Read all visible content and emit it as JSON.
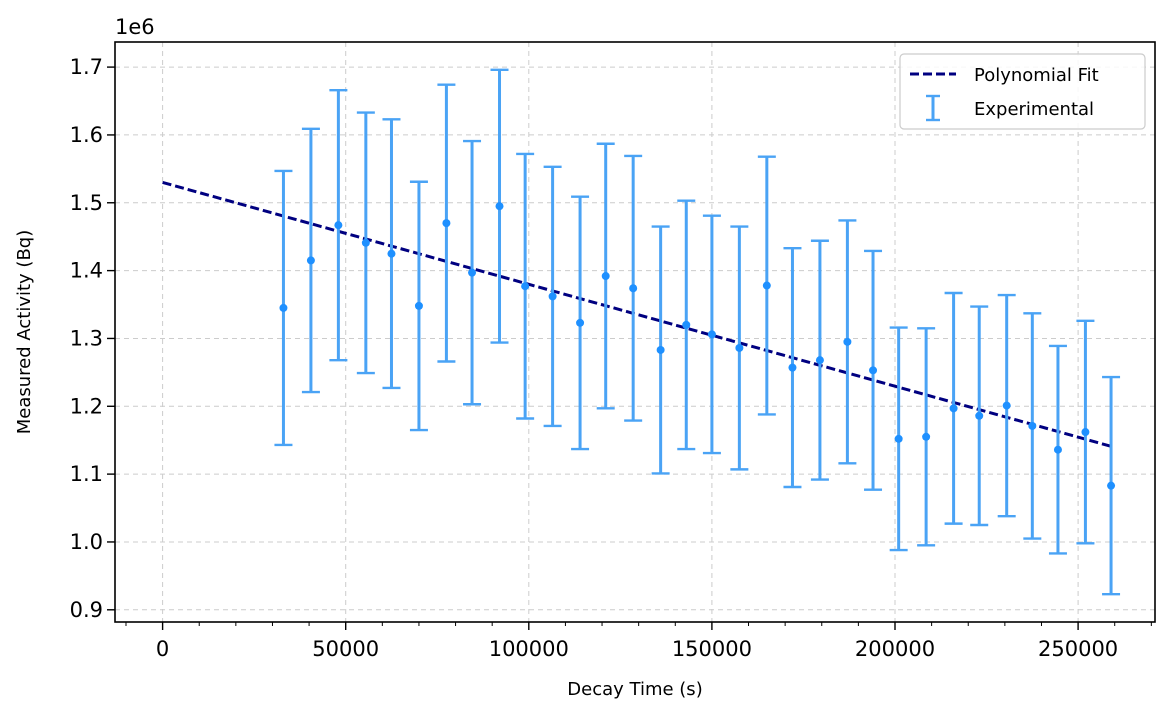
{
  "chart_data": {
    "type": "scatter",
    "title": "",
    "xlabel": "Decay Time (s)",
    "ylabel": "Measured Activity (Bq)",
    "y_offset_label": "1e6",
    "xlim": [
      -13000,
      271000
    ],
    "ylim": [
      0.882,
      1.737
    ],
    "x_ticks": [
      0,
      50000,
      100000,
      150000,
      200000,
      250000
    ],
    "x_tick_labels": [
      "0",
      "50000",
      "100000",
      "150000",
      "200000",
      "250000"
    ],
    "y_ticks": [
      0.9,
      1.0,
      1.1,
      1.2,
      1.3,
      1.4,
      1.5,
      1.6,
      1.7
    ],
    "y_tick_labels": [
      "0.9",
      "1.0",
      "1.1",
      "1.2",
      "1.3",
      "1.4",
      "1.5",
      "1.6",
      "1.7"
    ],
    "x_minor_step": 10000,
    "grid": true,
    "legend_position": "top-right",
    "legend": [
      "Polynomial Fit",
      "Experimental"
    ],
    "colors": {
      "fit": "#000080",
      "points": "#1e90ff",
      "errorbars": "#4aa3f5",
      "grid": "#cccccc"
    },
    "series": [
      {
        "name": "Experimental",
        "style": "errorbar",
        "x": [
          33000,
          40500,
          48000,
          55500,
          62500,
          70000,
          77500,
          84500,
          92000,
          99000,
          106500,
          114000,
          121000,
          128500,
          136000,
          143000,
          150000,
          157500,
          165000,
          172000,
          179500,
          187000,
          194000,
          201000,
          208500,
          216000,
          223000,
          230500,
          237500,
          244500,
          252000,
          259000
        ],
        "y": [
          1.345,
          1.415,
          1.467,
          1.441,
          1.425,
          1.348,
          1.47,
          1.397,
          1.495,
          1.377,
          1.362,
          1.323,
          1.392,
          1.374,
          1.283,
          1.32,
          1.306,
          1.286,
          1.378,
          1.257,
          1.268,
          1.295,
          1.253,
          1.152,
          1.155,
          1.197,
          1.186,
          1.201,
          1.171,
          1.136,
          1.162,
          1.083
        ],
        "yerr": [
          0.202,
          0.194,
          0.199,
          0.192,
          0.198,
          0.183,
          0.204,
          0.194,
          0.201,
          0.195,
          0.191,
          0.186,
          0.195,
          0.195,
          0.182,
          0.183,
          0.175,
          0.179,
          0.19,
          0.176,
          0.176,
          0.179,
          0.176,
          0.164,
          0.16,
          0.17,
          0.161,
          0.163,
          0.166,
          0.153,
          0.164,
          0.16
        ]
      },
      {
        "name": "Polynomial Fit",
        "style": "dashed-line",
        "x": [
          0,
          259000
        ],
        "y": [
          1.53,
          1.141
        ]
      }
    ]
  }
}
